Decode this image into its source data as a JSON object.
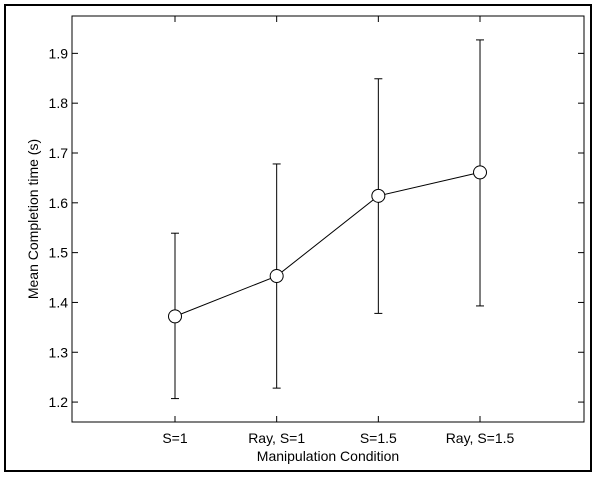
{
  "chart_data": {
    "type": "line",
    "title": "",
    "xlabel": "Manipulation Condition",
    "ylabel": "Mean Completion time (s)",
    "categories": [
      "S=1",
      "Ray, S=1",
      "S=1.5",
      "Ray, S=1.5"
    ],
    "series": [
      {
        "values": [
          1.372,
          1.453,
          1.614,
          1.661
        ],
        "error_low": [
          1.207,
          1.228,
          1.378,
          1.393
        ],
        "error_high": [
          1.539,
          1.678,
          1.849,
          1.927
        ]
      }
    ],
    "yticks": [
      "1.2",
      "1.3",
      "1.4",
      "1.5",
      "1.6",
      "1.7",
      "1.8",
      "1.9"
    ],
    "ylim": [
      1.16,
      1.975
    ],
    "grid": false,
    "legend": "none",
    "colors": {
      "line": "#000000",
      "background": "#ffffff"
    }
  }
}
